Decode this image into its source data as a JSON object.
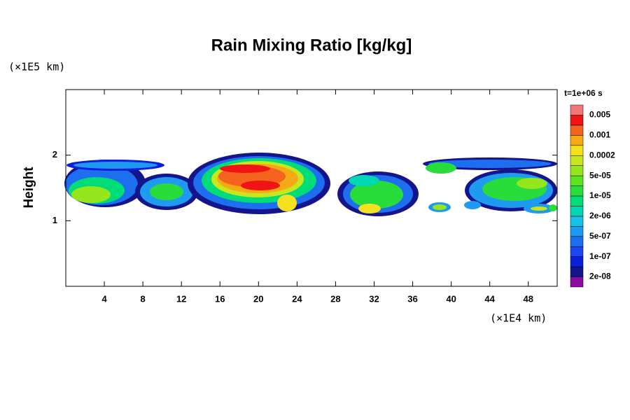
{
  "chart_data": {
    "type": "contour",
    "title": "Rain Mixing Ratio [kg/kg]",
    "y_label": "Height",
    "y_unit": "(×1E5 km)",
    "x_unit": "(×1E4 km)",
    "time_label": "t=1e+06 s",
    "xlim": [
      0,
      51
    ],
    "xticks": [
      4,
      8,
      12,
      16,
      20,
      24,
      28,
      32,
      36,
      40,
      44,
      48
    ],
    "ylim": [
      0,
      3
    ],
    "yticks": [
      1,
      2
    ],
    "colorbar": {
      "colors": [
        "#8c0aa0",
        "#14148c",
        "#0a1edc",
        "#1e46f0",
        "#1e6ef0",
        "#1e9bf0",
        "#14c3e6",
        "#00d7b4",
        "#00dc78",
        "#28dc3c",
        "#5ae61e",
        "#96e61e",
        "#c8e61e",
        "#f5e11e",
        "#f5aa14",
        "#f5641e",
        "#f01414",
        "#f07878"
      ],
      "labels": [
        {
          "value": 2e-08,
          "label": "2e-08"
        },
        {
          "value": 1e-07,
          "label": "1e-07"
        },
        {
          "value": 5e-07,
          "label": "5e-07"
        },
        {
          "value": 2e-06,
          "label": "2e-06"
        },
        {
          "value": 1e-05,
          "label": "1e-05"
        },
        {
          "value": 5e-05,
          "label": "5e-05"
        },
        0.0002,
        0.001,
        0.005
      ]
    }
  }
}
